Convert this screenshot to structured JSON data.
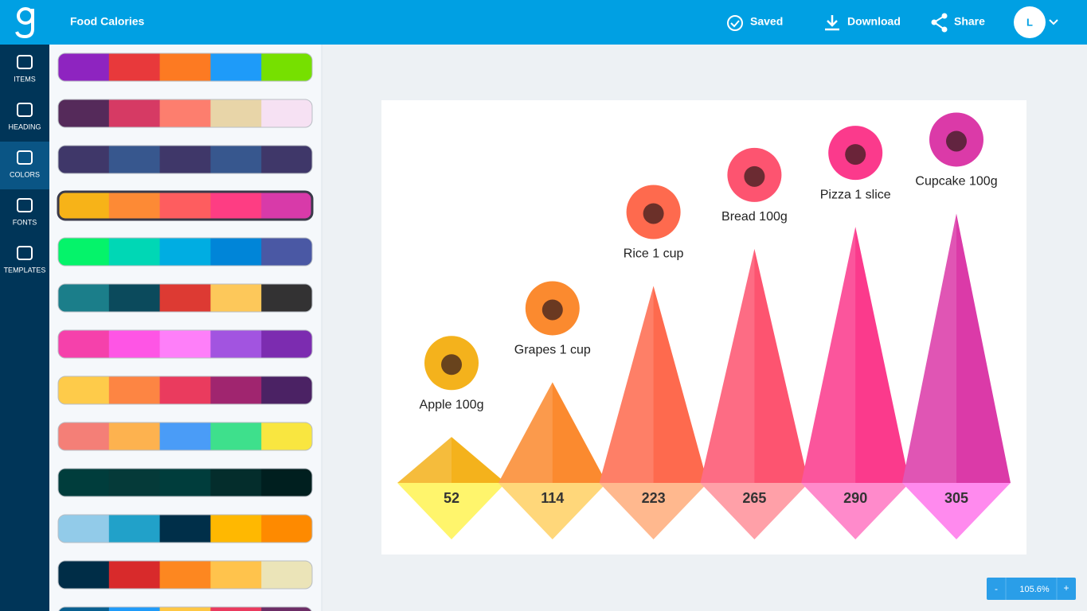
{
  "header": {
    "title": "Food Calories",
    "actions": [
      "Saved",
      "Download",
      "Share"
    ],
    "avatar": "L"
  },
  "sidebar": {
    "items": [
      "ITEMS",
      "HEADING",
      "COLORS",
      "FONTS",
      "TEMPLATES"
    ],
    "active": 2
  },
  "palettes": [
    [
      "#8e24c0",
      "#e8393b",
      "#fd7a22",
      "#1e9bf9",
      "#76e000"
    ],
    [
      "#552a5a",
      "#d63a64",
      "#fd7e6e",
      "#e8d5a8",
      "#f6e1f3"
    ],
    [
      "#3f3769",
      "#37578e",
      "#3f3769",
      "#37578e",
      "#3f3769"
    ],
    [
      "#f7b318",
      "#fd8a35",
      "#fe5d5f",
      "#fe3d83",
      "#d83aa9"
    ],
    [
      "#05f36a",
      "#00d7b5",
      "#00ade2",
      "#0085d8",
      "#4a58a4"
    ],
    [
      "#1b7e8a",
      "#0b4a5c",
      "#dd3a33",
      "#fdc85a",
      "#333233"
    ],
    [
      "#f541ab",
      "#fe55e5",
      "#fe7ff9",
      "#a254e0",
      "#7c2cb0"
    ],
    [
      "#fecb4a",
      "#fd8543",
      "#ea3b5e",
      "#a0256f",
      "#4b2264"
    ],
    [
      "#f47f77",
      "#fdb24f",
      "#4a9cf7",
      "#3ee08c",
      "#f9e640"
    ],
    [
      "#003d3c",
      "#053a39",
      "#003d3c",
      "#042d2c",
      "#001f1f"
    ],
    [
      "#92cbe9",
      "#21a1c9",
      "#002f49",
      "#ffb801",
      "#fe8a00"
    ],
    [
      "#002d47",
      "#d82a2b",
      "#fd8720",
      "#ffc34c",
      "#ebe4b8"
    ],
    [
      "#085f8f",
      "#1e9bf9",
      "#fec744",
      "#ea3a5e",
      "#6c2d66"
    ]
  ],
  "selected_palette": 3,
  "chart_data": {
    "type": "pyramid",
    "categories": [
      "Apple 100g",
      "Grapes 1 cup",
      "Rice 1 cup",
      "Bread 100g",
      "Pizza 1 slice",
      "Cupcake 100g"
    ],
    "values": [
      52,
      114,
      223,
      265,
      290,
      305
    ],
    "colors": [
      "#f4b21c",
      "#fb8a2f",
      "#fe6a4e",
      "#fd5470",
      "#fb3a8c",
      "#db3aa8"
    ],
    "base_colors": [
      "#fff56c",
      "#ffd77a",
      "#ffb88e",
      "#ffa0a8",
      "#ff8acb",
      "#ff8aee"
    ]
  },
  "zoom": {
    "minus": "-",
    "value": "105.6%",
    "plus": "+"
  }
}
